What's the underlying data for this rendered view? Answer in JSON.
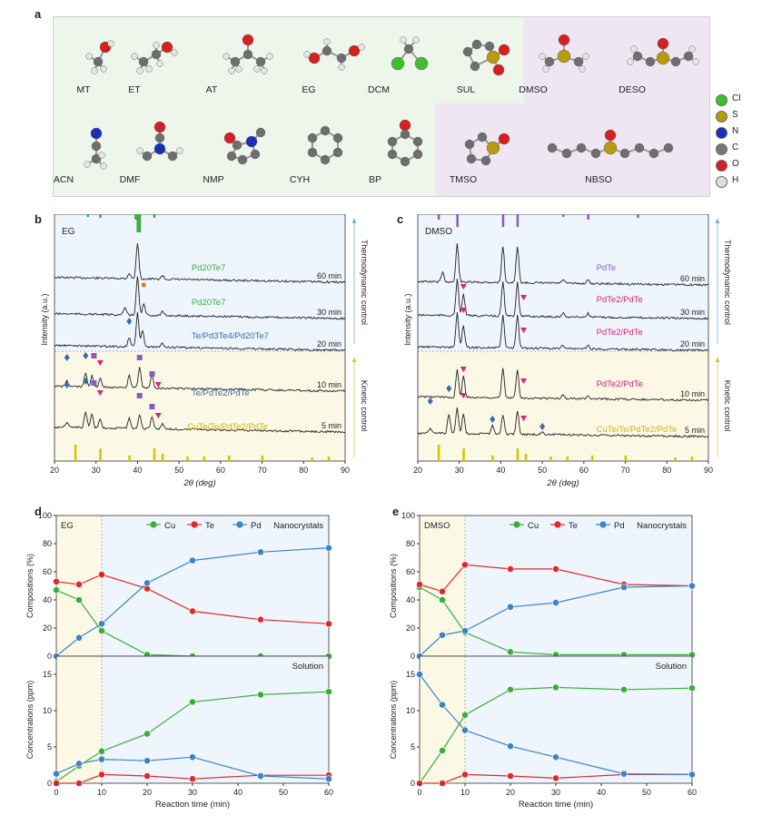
{
  "panel_a": {
    "letter": "a",
    "molecules_row1": [
      "MT",
      "ET",
      "AT",
      "EG",
      "DCM",
      "SUL",
      "DMSO",
      "DESO"
    ],
    "molecules_row2": [
      "ACN",
      "DMF",
      "NMP",
      "CYH",
      "BP",
      "TMSO",
      "NBSO"
    ],
    "legend": [
      {
        "sym": "Cl",
        "color": "#3fbf2f"
      },
      {
        "sym": "S",
        "color": "#b89a10"
      },
      {
        "sym": "N",
        "color": "#1a2fb8"
      },
      {
        "sym": "C",
        "color": "#777777"
      },
      {
        "sym": "O",
        "color": "#d42020"
      },
      {
        "sym": "H",
        "color": "#dddddd"
      }
    ]
  },
  "panel_b": {
    "letter": "b",
    "solvent": "EG",
    "ylabel": "Intensity (a.u.)",
    "xlabel": "2θ (deg)",
    "xticks": [
      "20",
      "30",
      "40",
      "50",
      "60",
      "70",
      "80",
      "90"
    ],
    "times": [
      "60 min",
      "30 min",
      "20 min",
      "10 min",
      "5 min"
    ],
    "phase_labels": [
      "Pd20Te7",
      "Pd20Te7",
      "Te/Pd3Te4/Pd20Te7",
      "Te/PdTe2/PdTe",
      "CuTe/Te/PdTe2/PdTe"
    ],
    "side_top": "Thermodynamic control",
    "side_bottom": "Kinetic control"
  },
  "panel_c": {
    "letter": "c",
    "solvent": "DMSO",
    "ylabel": "Intensity (a.u.)",
    "xlabel": "2θ (deg)",
    "xticks": [
      "20",
      "30",
      "40",
      "50",
      "60",
      "70",
      "80",
      "90"
    ],
    "times": [
      "60 min",
      "30 min",
      "20 min",
      "10 min",
      "5 min"
    ],
    "phase_labels": [
      "PdTe",
      "PdTe2/PdTe",
      "PdTe2/PdTe",
      "PdTe2/PdTe",
      "CuTe/Te/PdTe2/PdTe"
    ],
    "side_top": "Thermodynamic control",
    "side_bottom": "Kinetic control"
  },
  "panel_d": {
    "letter": "d",
    "solvent": "EG",
    "top_label": "Nanocrystals",
    "bottom_label": "Solution",
    "ylabel_top": "Compositions (%)",
    "ylabel_bottom": "Concentrations (ppm)",
    "xlabel": "Reaction time (min)",
    "legend": [
      "Cu",
      "Te",
      "Pd"
    ]
  },
  "panel_e": {
    "letter": "e",
    "solvent": "DMSO",
    "top_label": "Nanocrystals",
    "bottom_label": "Solution",
    "ylabel_top": "Compositions (%)",
    "ylabel_bottom": "Concentrations (ppm)",
    "xlabel": "Reaction time (min)",
    "legend": [
      "Cu",
      "Te",
      "Pd"
    ]
  },
  "colors": {
    "cu": "#3aae3a",
    "te": "#e02a2a",
    "pd": "#3a84c8"
  },
  "chart_data": [
    {
      "type": "line",
      "title": "d EG Nanocrystals",
      "xlabel": "Reaction time (min)",
      "ylabel": "Compositions (%)",
      "x": [
        0,
        5,
        10,
        20,
        30,
        45,
        60
      ],
      "xlim": [
        0,
        60
      ],
      "ylim": [
        0,
        100
      ],
      "yticks": [
        0,
        20,
        40,
        60,
        80,
        100
      ],
      "series": [
        {
          "name": "Cu",
          "values": [
            47,
            40,
            18,
            1,
            0,
            0,
            0
          ]
        },
        {
          "name": "Te",
          "values": [
            53,
            51,
            58,
            48,
            32,
            26,
            23
          ]
        },
        {
          "name": "Pd",
          "values": [
            0,
            13,
            23,
            52,
            68,
            74,
            77
          ]
        }
      ]
    },
    {
      "type": "line",
      "title": "d EG Solution",
      "xlabel": "Reaction time (min)",
      "ylabel": "Concentrations (ppm)",
      "x": [
        0,
        5,
        10,
        20,
        30,
        45,
        60
      ],
      "xlim": [
        0,
        60
      ],
      "ylim": [
        0,
        17.5
      ],
      "yticks": [
        0,
        5,
        10,
        15
      ],
      "xticks": [
        0,
        10,
        20,
        30,
        40,
        50,
        60
      ],
      "series": [
        {
          "name": "Cu",
          "values": [
            0.2,
            2.4,
            4.4,
            6.8,
            11.2,
            12.2,
            12.6
          ]
        },
        {
          "name": "Te",
          "values": [
            0,
            0,
            1.2,
            1.0,
            0.6,
            1.1,
            1.1
          ]
        },
        {
          "name": "Pd",
          "values": [
            1.3,
            2.7,
            3.3,
            3.1,
            3.6,
            1.0,
            0.6
          ]
        }
      ]
    },
    {
      "type": "line",
      "title": "e DMSO Nanocrystals",
      "xlabel": "Reaction time (min)",
      "ylabel": "Compositions (%)",
      "x": [
        0,
        5,
        10,
        20,
        30,
        45,
        60
      ],
      "xlim": [
        0,
        60
      ],
      "ylim": [
        0,
        100
      ],
      "yticks": [
        0,
        20,
        40,
        60,
        80,
        100
      ],
      "series": [
        {
          "name": "Cu",
          "values": [
            49,
            40,
            17,
            3,
            1,
            1,
            1
          ]
        },
        {
          "name": "Te",
          "values": [
            51,
            46,
            65,
            62,
            62,
            51,
            50
          ]
        },
        {
          "name": "Pd",
          "values": [
            0,
            15,
            18,
            35,
            38,
            49,
            50
          ]
        }
      ]
    },
    {
      "type": "line",
      "title": "e DMSO Solution",
      "xlabel": "Reaction time (min)",
      "ylabel": "Concentrations (ppm)",
      "x": [
        0,
        5,
        10,
        20,
        30,
        45,
        60
      ],
      "xlim": [
        0,
        60
      ],
      "ylim": [
        0,
        17.5
      ],
      "yticks": [
        0,
        5,
        10,
        15
      ],
      "xticks": [
        0,
        10,
        20,
        30,
        40,
        50,
        60
      ],
      "series": [
        {
          "name": "Cu",
          "values": [
            0,
            4.5,
            9.4,
            12.9,
            13.2,
            12.9,
            13.1
          ]
        },
        {
          "name": "Te",
          "values": [
            0,
            0,
            1.2,
            1.0,
            0.7,
            1.2,
            1.2
          ]
        },
        {
          "name": "Pd",
          "values": [
            15,
            10.8,
            7.3,
            5.1,
            3.6,
            1.3,
            1.2
          ]
        }
      ]
    }
  ]
}
